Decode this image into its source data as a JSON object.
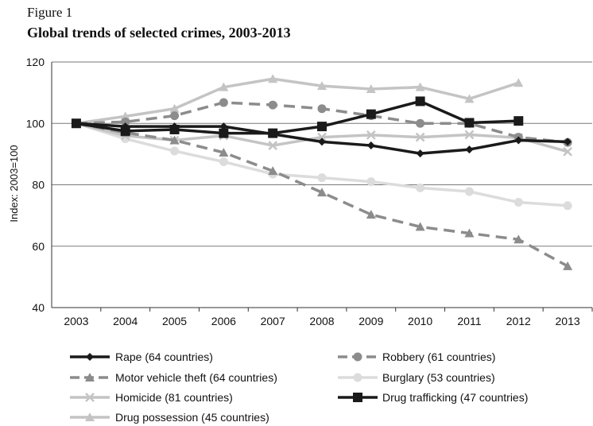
{
  "figure_label": "Figure 1",
  "chart_data": {
    "type": "line",
    "title": "Global trends of selected crimes, 2003-2013",
    "xlabel": "",
    "ylabel": "Index: 2003=100",
    "ylim": [
      40,
      120
    ],
    "yticks": [
      40,
      60,
      80,
      100,
      120
    ],
    "grid": true,
    "legend_position": "bottom",
    "x": [
      "2003",
      "2004",
      "2005",
      "2006",
      "2007",
      "2008",
      "2009",
      "2010",
      "2011",
      "2012",
      "2013"
    ],
    "series": [
      {
        "name": "Rape (64 countries)",
        "color": "#1a1a1a",
        "dash": "solid",
        "marker": "diamond",
        "values": [
          100,
          99,
          99,
          99,
          96.5,
          94,
          92.8,
          90.2,
          91.5,
          94.5,
          94
        ]
      },
      {
        "name": "Robbery (61 countries)",
        "color": "#8c8c8c",
        "dash": "dashed",
        "marker": "circle",
        "values": [
          100,
          100.5,
          102.5,
          106.8,
          106,
          104.8,
          102.5,
          100,
          100,
          95.5,
          93.8
        ]
      },
      {
        "name": "Motor vehicle theft (64 countries)",
        "color": "#8c8c8c",
        "dash": "dashed",
        "marker": "triangle",
        "values": [
          100,
          97,
          94.5,
          90.5,
          84.5,
          77.5,
          70.3,
          66.3,
          64.2,
          62.2,
          53.5
        ]
      },
      {
        "name": "Burglary (53 countries)",
        "color": "#dcdcdc",
        "dash": "solid",
        "marker": "circle",
        "values": [
          100,
          95,
          91,
          87.5,
          83.5,
          82.3,
          81,
          79,
          77.8,
          74.3,
          73.2
        ]
      },
      {
        "name": "Homicide (81 countries)",
        "color": "#c4c4c4",
        "dash": "solid",
        "marker": "x",
        "values": [
          100,
          96,
          94.5,
          96,
          92.8,
          95.5,
          96.2,
          95.5,
          96.3,
          95.3,
          90.8
        ]
      },
      {
        "name": "Drug trafficking (47 countries)",
        "color": "#1a1a1a",
        "dash": "solid",
        "marker": "square",
        "values": [
          100,
          97.5,
          98,
          96.8,
          96.8,
          99,
          103,
          107.2,
          100.2,
          100.8,
          null
        ]
      },
      {
        "name": "Drug possession (45 countries)",
        "color": "#c4c4c4",
        "dash": "solid",
        "marker": "triangle",
        "values": [
          100,
          102.3,
          104.8,
          111.8,
          114.5,
          112.2,
          111.2,
          111.8,
          108,
          113.2,
          null
        ]
      }
    ]
  }
}
